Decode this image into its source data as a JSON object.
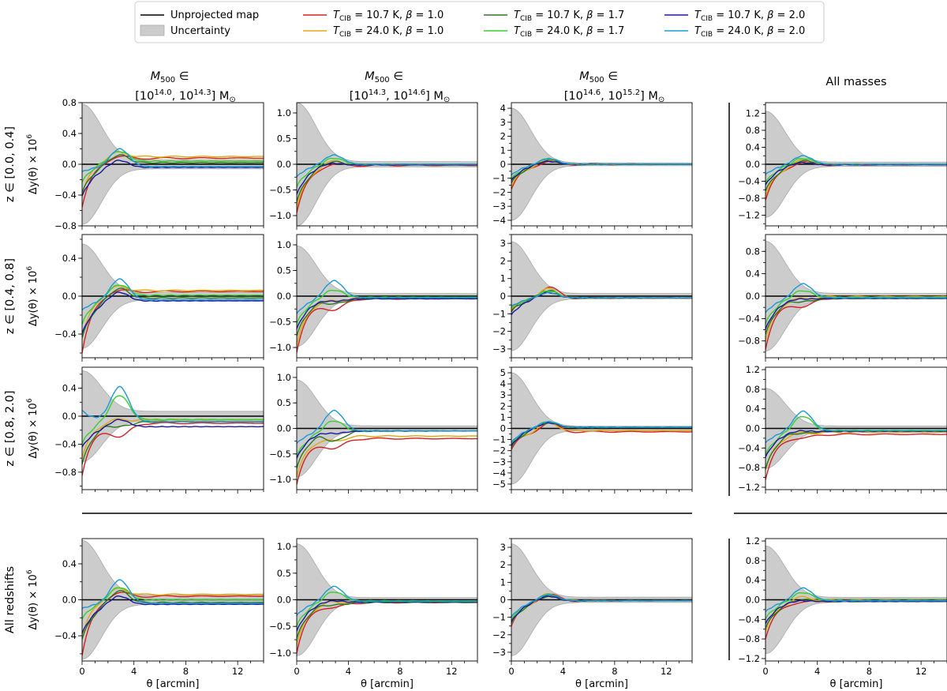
{
  "legend": {
    "unprojected": "Unprojected map",
    "uncertainty": "Uncertainty",
    "entries": [
      {
        "T": "10.7",
        "beta": "1.0",
        "color": "#d62020"
      },
      {
        "T": "24.0",
        "beta": "1.0",
        "color": "#e0a810"
      },
      {
        "T": "10.7",
        "beta": "1.7",
        "color": "#2b7a1e"
      },
      {
        "T": "24.0",
        "beta": "1.7",
        "color": "#38d030"
      },
      {
        "T": "10.7",
        "beta": "2.0",
        "color": "#1a1aa0"
      },
      {
        "T": "24.0",
        "beta": "2.0",
        "color": "#1a9ad8"
      }
    ],
    "T_symbol": "T",
    "T_subscript": "CIB",
    "unit": "K",
    "beta_symbol": "β"
  },
  "columns": [
    {
      "line1_sym": "M",
      "line1_sub": "500",
      "line1_rest": " ∈",
      "lo": "14.0",
      "hi": "14.3",
      "unit": "M",
      "unit_sub": "⊙"
    },
    {
      "line1_sym": "M",
      "line1_sub": "500",
      "line1_rest": " ∈",
      "lo": "14.3",
      "hi": "14.6",
      "unit": "M",
      "unit_sub": "⊙"
    },
    {
      "line1_sym": "M",
      "line1_sub": "500",
      "line1_rest": " ∈",
      "lo": "14.6",
      "hi": "15.2",
      "unit": "M",
      "unit_sub": "⊙"
    },
    {
      "text": "All masses"
    }
  ],
  "rows": [
    {
      "label": "z ∈ [0.0, 0.4]"
    },
    {
      "label": "z ∈ [0.4, 0.8]"
    },
    {
      "label": "z ∈ [0.8, 2.0]"
    },
    {
      "label": "All redshifts"
    }
  ],
  "y_label": "Δy(θ) × 10",
  "y_label_exp": "6",
  "x_label": "θ [arcmin]",
  "chart_data": {
    "type": "line",
    "x_range": [
      0,
      14
    ],
    "x_ticks": [
      0,
      4,
      8,
      12
    ],
    "series_order": [
      "T10.7_b1.0",
      "T24.0_b1.0",
      "T10.7_b1.7",
      "T24.0_b1.7",
      "T10.7_b2.0",
      "T24.0_b2.0"
    ],
    "baseline": 0,
    "panels": [
      [
        {
          "ylim": [
            -0.8,
            0.8
          ],
          "yticks": [
            -0.8,
            -0.4,
            0.0,
            0.4,
            0.8
          ],
          "unc": [
            0.78,
            0.06
          ],
          "start": [
            -0.56,
            -0.4,
            -0.38,
            -0.24,
            -0.42,
            -0.1
          ],
          "peak": [
            0.1,
            0.15,
            0.12,
            0.17,
            0.05,
            0.2
          ],
          "tail": [
            0.08,
            0.1,
            0.02,
            0.04,
            -0.04,
            -0.03
          ]
        },
        {
          "ylim": [
            -1.2,
            1.2
          ],
          "yticks": [
            -1.0,
            -0.5,
            0.0,
            0.5,
            1.0
          ],
          "unc": [
            1.2,
            0.05
          ],
          "start": [
            -0.95,
            -0.85,
            -0.75,
            -0.45,
            -0.6,
            -0.25
          ],
          "peak": [
            0.0,
            0.05,
            0.05,
            0.12,
            0.02,
            0.18
          ],
          "tail": [
            -0.02,
            0.0,
            -0.01,
            0.0,
            -0.01,
            0.0
          ]
        },
        {
          "ylim": [
            -4.4,
            4.4
          ],
          "yticks": [
            -4,
            -3,
            -2,
            -1,
            0,
            1,
            2,
            3,
            4
          ],
          "unc": [
            4.0,
            0.1
          ],
          "start": [
            -1.8,
            -1.6,
            -1.4,
            -1.1,
            -1.2,
            -0.8
          ],
          "peak": [
            0.2,
            0.3,
            0.3,
            0.4,
            0.2,
            0.4
          ],
          "tail": [
            0.0,
            0.0,
            0.0,
            0.0,
            0.0,
            0.0
          ]
        },
        {
          "ylim": [
            -1.45,
            1.45
          ],
          "yticks": [
            -1.2,
            -0.8,
            -0.4,
            0.0,
            0.4,
            0.8,
            1.2
          ],
          "unc": [
            1.25,
            0.05
          ],
          "start": [
            -0.85,
            -0.75,
            -0.65,
            -0.45,
            -0.5,
            -0.25
          ],
          "peak": [
            0.05,
            0.08,
            0.08,
            0.14,
            0.04,
            0.2
          ],
          "tail": [
            -0.01,
            0.0,
            -0.01,
            0.0,
            -0.01,
            0.0
          ]
        }
      ],
      [
        {
          "ylim": [
            -0.65,
            0.65
          ],
          "yticks": [
            -0.4,
            0.0,
            0.4
          ],
          "unc": [
            0.55,
            0.04
          ],
          "start": [
            -0.6,
            -0.45,
            -0.45,
            -0.3,
            -0.4,
            -0.15
          ],
          "peak": [
            0.06,
            0.1,
            0.08,
            0.12,
            0.04,
            0.18
          ],
          "tail": [
            0.05,
            0.06,
            -0.02,
            0.01,
            -0.05,
            -0.04
          ]
        },
        {
          "ylim": [
            -1.2,
            1.2
          ],
          "yticks": [
            -1.0,
            -0.5,
            0.0,
            0.5,
            1.0
          ],
          "unc": [
            0.98,
            0.05
          ],
          "start": [
            -1.1,
            -0.95,
            -0.8,
            -0.55,
            -0.65,
            -0.35
          ],
          "peak": [
            -0.28,
            -0.1,
            -0.15,
            0.12,
            -0.1,
            0.3
          ],
          "tail": [
            -0.05,
            -0.03,
            -0.05,
            -0.02,
            -0.05,
            -0.03
          ]
        },
        {
          "ylim": [
            -3.5,
            3.5
          ],
          "yticks": [
            -3,
            -2,
            -1,
            0,
            1,
            2,
            3
          ],
          "unc": [
            3.1,
            0.15
          ],
          "start": [
            -0.9,
            -0.8,
            -0.9,
            -0.7,
            -1.1,
            -0.6
          ],
          "peak": [
            0.5,
            0.4,
            0.3,
            0.3,
            0.2,
            0.2
          ],
          "tail": [
            -0.1,
            -0.1,
            -0.1,
            -0.1,
            -0.1,
            -0.1
          ]
        },
        {
          "ylim": [
            -1.1,
            1.1
          ],
          "yticks": [
            -0.8,
            -0.4,
            0.0,
            0.4,
            0.8
          ],
          "unc": [
            0.98,
            0.05
          ],
          "start": [
            -0.95,
            -0.8,
            -0.7,
            -0.5,
            -0.6,
            -0.3
          ],
          "peak": [
            -0.2,
            -0.05,
            -0.1,
            0.1,
            -0.05,
            0.22
          ],
          "tail": [
            -0.03,
            -0.01,
            -0.04,
            -0.02,
            -0.04,
            -0.03
          ]
        }
      ],
      [
        {
          "ylim": [
            -1.05,
            0.7
          ],
          "yticks": [
            -0.8,
            -0.4,
            0.0,
            0.4
          ],
          "unc": [
            0.65,
            0.07
          ],
          "start": [
            -0.85,
            -0.6,
            -0.7,
            -0.4,
            -0.45,
            0.08
          ],
          "peak": [
            -0.3,
            -0.05,
            -0.15,
            0.3,
            -0.05,
            0.42
          ],
          "tail": [
            -0.1,
            -0.05,
            -0.08,
            -0.05,
            -0.15,
            -0.08
          ]
        },
        {
          "ylim": [
            -1.2,
            1.2
          ],
          "yticks": [
            -1.0,
            -0.5,
            0.0,
            0.5,
            1.0
          ],
          "unc": [
            0.95,
            0.05
          ],
          "start": [
            -1.1,
            -0.95,
            -0.8,
            -0.55,
            -0.6,
            -0.3
          ],
          "peak": [
            -0.4,
            -0.25,
            -0.25,
            0.15,
            -0.1,
            0.35
          ],
          "tail": [
            -0.2,
            -0.15,
            -0.05,
            -0.05,
            -0.05,
            -0.05
          ]
        },
        {
          "ylim": [
            -5.5,
            5.5
          ],
          "yticks": [
            -5,
            -4,
            -3,
            -2,
            -1,
            0,
            1,
            2,
            3,
            4,
            5
          ],
          "unc": [
            5.0,
            0.2
          ],
          "start": [
            -1.9,
            -1.7,
            -1.8,
            -1.5,
            -1.6,
            -1.3
          ],
          "peak": [
            0.5,
            0.5,
            0.5,
            0.6,
            0.5,
            0.6
          ],
          "tail": [
            -0.3,
            -0.2,
            0.1,
            0.1,
            0.1,
            0.1
          ]
        },
        {
          "ylim": [
            -1.25,
            1.25
          ],
          "yticks": [
            -1.2,
            -0.8,
            -0.4,
            0.0,
            0.4,
            0.8,
            1.2
          ],
          "unc": [
            0.82,
            0.05
          ],
          "start": [
            -1.05,
            -0.85,
            -0.85,
            -0.55,
            -0.6,
            -0.3
          ],
          "peak": [
            -0.2,
            -0.1,
            -0.1,
            0.25,
            -0.05,
            0.35
          ],
          "tail": [
            -0.12,
            -0.08,
            -0.05,
            -0.04,
            -0.06,
            -0.05
          ]
        }
      ],
      [
        {
          "ylim": [
            -0.68,
            0.68
          ],
          "yticks": [
            -0.4,
            0.0,
            0.4
          ],
          "unc": [
            0.66,
            0.05
          ],
          "start": [
            -0.62,
            -0.42,
            -0.45,
            -0.22,
            -0.38,
            -0.1
          ],
          "peak": [
            0.08,
            0.12,
            0.1,
            0.14,
            0.04,
            0.22
          ],
          "tail": [
            0.04,
            0.06,
            -0.03,
            0.0,
            -0.05,
            -0.04
          ]
        },
        {
          "ylim": [
            -1.15,
            1.15
          ],
          "yticks": [
            -1.0,
            -0.5,
            0.0,
            0.5,
            1.0
          ],
          "unc": [
            1.05,
            0.04
          ],
          "start": [
            -1.0,
            -0.85,
            -0.75,
            -0.5,
            -0.6,
            -0.3
          ],
          "peak": [
            -0.15,
            -0.05,
            -0.1,
            0.15,
            -0.02,
            0.25
          ],
          "tail": [
            -0.05,
            -0.03,
            -0.05,
            -0.02,
            -0.04,
            -0.03
          ]
        },
        {
          "ylim": [
            -3.5,
            3.5
          ],
          "yticks": [
            -3,
            -2,
            -1,
            0,
            1,
            2,
            3
          ],
          "unc": [
            3.2,
            0.15
          ],
          "start": [
            -1.5,
            -1.4,
            -1.4,
            -1.2,
            -1.3,
            -1.0
          ],
          "peak": [
            0.3,
            0.3,
            0.2,
            0.3,
            0.2,
            0.3
          ],
          "tail": [
            -0.05,
            -0.05,
            -0.05,
            -0.05,
            -0.05,
            -0.05
          ]
        },
        {
          "ylim": [
            -1.25,
            1.25
          ],
          "yticks": [
            -1.2,
            -0.8,
            -0.4,
            0.0,
            0.4,
            0.8,
            1.2
          ],
          "unc": [
            1.1,
            0.05
          ],
          "start": [
            -0.8,
            -0.65,
            -0.6,
            -0.4,
            -0.5,
            -0.25
          ],
          "peak": [
            -0.05,
            0.05,
            0.0,
            0.15,
            -0.02,
            0.24
          ],
          "tail": [
            -0.02,
            -0.01,
            -0.03,
            -0.01,
            -0.03,
            -0.02
          ]
        }
      ]
    ]
  }
}
